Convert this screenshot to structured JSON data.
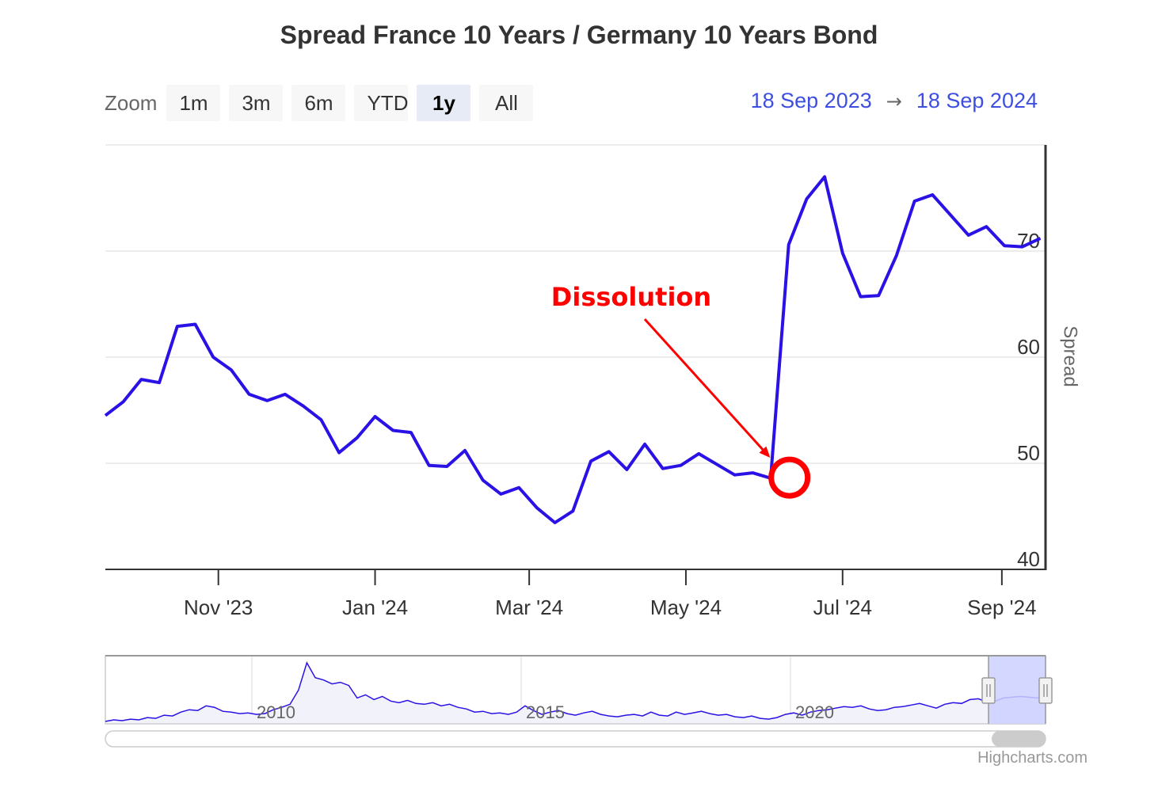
{
  "title": "Spread France 10 Years / Germany 10 Years Bond",
  "zoom": {
    "label": "Zoom",
    "buttons": [
      "1m",
      "3m",
      "6m",
      "YTD",
      "1y",
      "All"
    ],
    "active": "1y"
  },
  "range": {
    "from": "18 Sep 2023",
    "arrow": "→",
    "to": "18 Sep 2024"
  },
  "colors": {
    "series": "#2a12e6",
    "annotation": "#ff0000",
    "navigator_fill": "#f2f2fb",
    "navigator_mask": "#ccd0ff"
  },
  "annotation": {
    "label": "Dissolution",
    "point": {
      "x": "2024-06-10",
      "y": 48.8
    }
  },
  "credits": "Highcharts.com",
  "chart_data": {
    "type": "line",
    "title": "Spread France 10 Years / Germany 10 Years Bond",
    "ylabel": "Spread",
    "xlabel": "",
    "ylim": [
      40,
      80
    ],
    "xlim": [
      "2023-09-18",
      "2024-09-18"
    ],
    "yticks": [
      40,
      50,
      60,
      70
    ],
    "xticks": [
      {
        "date": "2023-11-01",
        "label": "Nov '23"
      },
      {
        "date": "2024-01-01",
        "label": "Jan '24"
      },
      {
        "date": "2024-03-01",
        "label": "Mar '24"
      },
      {
        "date": "2024-05-01",
        "label": "May '24"
      },
      {
        "date": "2024-07-01",
        "label": "Jul '24"
      },
      {
        "date": "2024-09-01",
        "label": "Sep '24"
      }
    ],
    "grid": true,
    "legend": "none",
    "series": [
      {
        "x": [
          "2023-09-18",
          "2023-09-25",
          "2023-10-02",
          "2023-10-09",
          "2023-10-16",
          "2023-10-23",
          "2023-10-30",
          "2023-11-06",
          "2023-11-13",
          "2023-11-20",
          "2023-11-27",
          "2023-12-04",
          "2023-12-11",
          "2023-12-18",
          "2023-12-25",
          "2024-01-01",
          "2024-01-08",
          "2024-01-15",
          "2024-01-22",
          "2024-01-29",
          "2024-02-05",
          "2024-02-12",
          "2024-02-19",
          "2024-02-26",
          "2024-03-04",
          "2024-03-11",
          "2024-03-18",
          "2024-03-25",
          "2024-04-01",
          "2024-04-08",
          "2024-04-15",
          "2024-04-22",
          "2024-04-29",
          "2024-05-06",
          "2024-05-13",
          "2024-05-20",
          "2024-05-27",
          "2024-06-03",
          "2024-06-10",
          "2024-06-17",
          "2024-06-24",
          "2024-07-01",
          "2024-07-08",
          "2024-07-15",
          "2024-07-22",
          "2024-07-29",
          "2024-08-05",
          "2024-08-12",
          "2024-08-19",
          "2024-08-26",
          "2024-09-02",
          "2024-09-09",
          "2024-09-16"
        ],
        "y": [
          54.5,
          55.8,
          57.9,
          57.6,
          62.9,
          63.1,
          60.0,
          58.8,
          56.5,
          55.9,
          56.5,
          55.4,
          54.1,
          51.0,
          52.4,
          54.4,
          53.1,
          52.9,
          49.8,
          49.7,
          51.2,
          48.4,
          47.1,
          47.7,
          45.8,
          44.4,
          45.5,
          50.2,
          51.1,
          49.4,
          51.8,
          49.5,
          49.8,
          50.9,
          49.9,
          48.9,
          49.1,
          48.6,
          70.6,
          74.9,
          77.0,
          69.8,
          65.7,
          65.8,
          69.6,
          74.7,
          75.3,
          73.4,
          71.5,
          72.3,
          70.5,
          70.4,
          71.2
        ]
      }
    ]
  },
  "navigator": {
    "xlabels": [
      "2010",
      "2015",
      "2020"
    ],
    "series_y": [
      40,
      42,
      41,
      43,
      42,
      45,
      44,
      48,
      47,
      52,
      55,
      54,
      60,
      58,
      53,
      52,
      50,
      51,
      49,
      50,
      55,
      58,
      62,
      80,
      115,
      96,
      93,
      88,
      90,
      86,
      70,
      74,
      68,
      72,
      66,
      64,
      67,
      63,
      62,
      64,
      60,
      62,
      58,
      56,
      52,
      53,
      50,
      51,
      49,
      52,
      60,
      54,
      49,
      52,
      54,
      50,
      48,
      51,
      53,
      49,
      47,
      46,
      48,
      49,
      47,
      52,
      48,
      47,
      52,
      49,
      51,
      53,
      50,
      48,
      49,
      46,
      45,
      47,
      44,
      43,
      45,
      49,
      51,
      48,
      52,
      54,
      55,
      57,
      59,
      58,
      60,
      56,
      54,
      55,
      58,
      59,
      61,
      63,
      60,
      57,
      62,
      64,
      63,
      68,
      69,
      65,
      66,
      70,
      71,
      72,
      71,
      70,
      72
    ]
  }
}
